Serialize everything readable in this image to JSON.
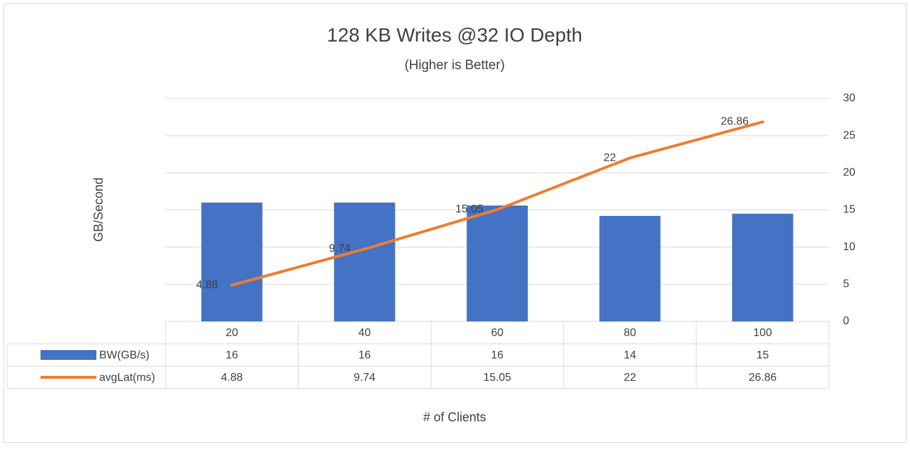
{
  "chart_data": {
    "type": "bar_line",
    "title": "128 KB Writes @32 IO Depth",
    "subtitle": "(Higher is Better)",
    "y_label": "GB/Second",
    "x_label": "# of Clients",
    "categories": [
      "20",
      "40",
      "60",
      "80",
      "100"
    ],
    "series": [
      {
        "name": "BW(GB/s)",
        "type": "bar",
        "color": "#4472c4",
        "values": [
          16,
          16,
          15.6,
          14.2,
          14.5
        ],
        "value_labels": [
          "16",
          "16",
          "16",
          "14",
          "15"
        ]
      },
      {
        "name": "avgLat(ms)",
        "type": "line",
        "color": "#ed7d31",
        "values": [
          4.88,
          9.74,
          15.05,
          22,
          26.86
        ]
      }
    ],
    "ylim": [
      0,
      30
    ],
    "yticks": [
      0,
      5,
      10,
      15,
      20,
      25,
      30
    ],
    "grid": true,
    "axis_side": "right"
  }
}
